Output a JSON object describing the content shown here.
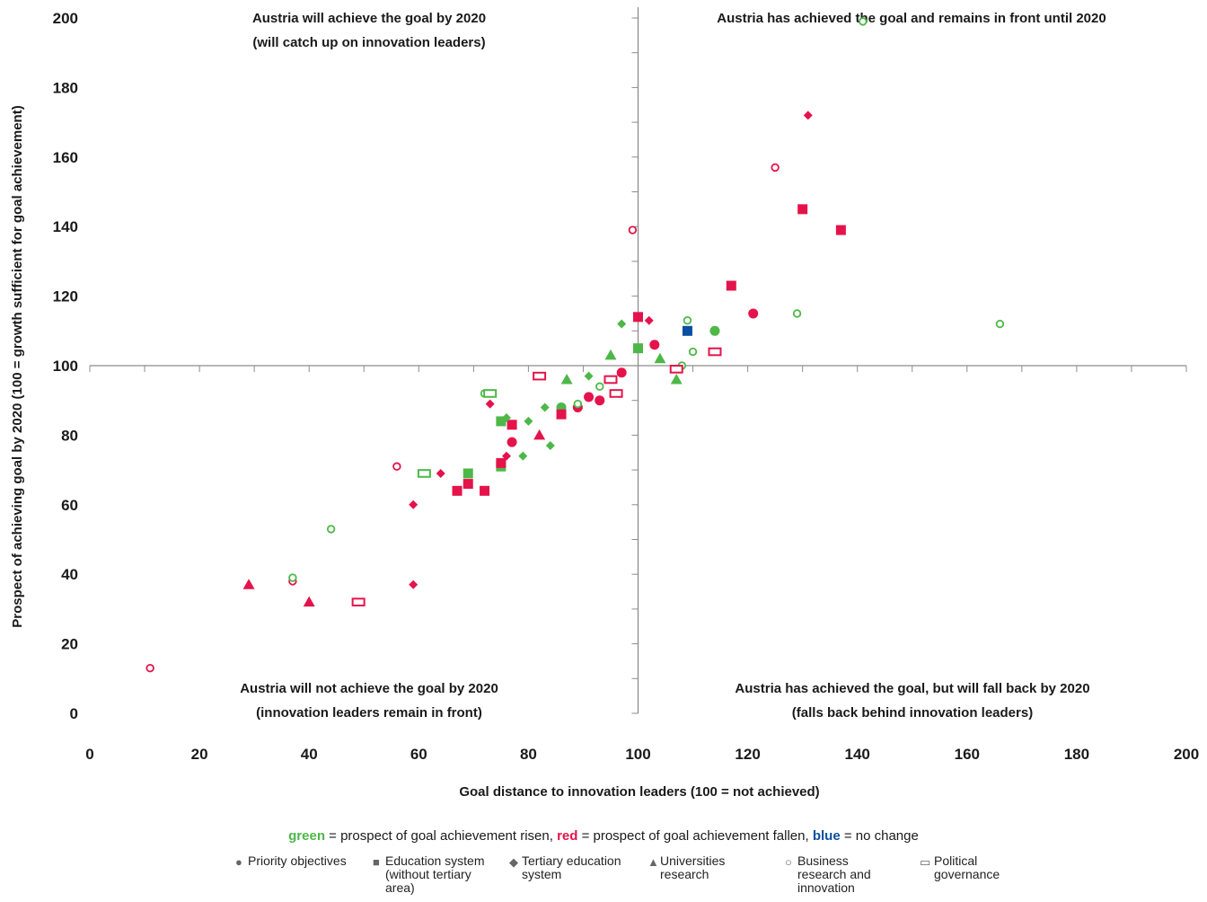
{
  "chart_data": {
    "type": "scatter",
    "xlabel": "Goal distance to innovation leaders (100 = not achieved)",
    "ylabel": "Prospect of achieving goal by 2020 (100 = growth sufficient for goal achievement)",
    "xlim": [
      0,
      200
    ],
    "ylim": [
      0,
      200
    ],
    "x_ticks": [
      "0",
      "20",
      "40",
      "60",
      "80",
      "100",
      "120",
      "140",
      "160",
      "180",
      "200"
    ],
    "y_ticks": [
      "0",
      "20",
      "40",
      "60",
      "80",
      "100",
      "120",
      "140",
      "160",
      "180",
      "200"
    ],
    "crosshair": {
      "x": 100,
      "y": 100
    },
    "colors": {
      "green": "#4db848",
      "red": "#e5134b",
      "blue": "#0a4fa0",
      "axis": "#8c8c8c"
    },
    "quadrant_labels": {
      "top_left": [
        "Austria will achieve the goal by 2020",
        "(will catch up on innovation leaders)"
      ],
      "top_right": [
        "Austria has achieved the goal and remains in front until 2020"
      ],
      "bottom_left": [
        "Austria will not achieve the goal by 2020",
        "(innovation leaders remain in front)"
      ],
      "bottom_right": [
        "Austria has achieved the goal, but will fall back by 2020",
        "(falls back behind innovation leaders)"
      ]
    },
    "points": [
      {
        "x": 86,
        "y": 88,
        "shape": "circle",
        "color": "green"
      },
      {
        "x": 91,
        "y": 91,
        "shape": "circle",
        "color": "red"
      },
      {
        "x": 93,
        "y": 90,
        "shape": "circle",
        "color": "red"
      },
      {
        "x": 89,
        "y": 88,
        "shape": "circle",
        "color": "red"
      },
      {
        "x": 97,
        "y": 98,
        "shape": "circle",
        "color": "red"
      },
      {
        "x": 103,
        "y": 106,
        "shape": "circle",
        "color": "red"
      },
      {
        "x": 114,
        "y": 110,
        "shape": "circle",
        "color": "green"
      },
      {
        "x": 121,
        "y": 115,
        "shape": "circle",
        "color": "red"
      },
      {
        "x": 77,
        "y": 78,
        "shape": "circle",
        "color": "red"
      },
      {
        "x": 69,
        "y": 69,
        "shape": "square",
        "color": "green"
      },
      {
        "x": 75,
        "y": 71,
        "shape": "square",
        "color": "green"
      },
      {
        "x": 75,
        "y": 84,
        "shape": "square",
        "color": "green"
      },
      {
        "x": 100,
        "y": 105,
        "shape": "square",
        "color": "green"
      },
      {
        "x": 67,
        "y": 64,
        "shape": "square",
        "color": "red"
      },
      {
        "x": 69,
        "y": 66,
        "shape": "square",
        "color": "red"
      },
      {
        "x": 72,
        "y": 64,
        "shape": "square",
        "color": "red"
      },
      {
        "x": 75,
        "y": 72,
        "shape": "square",
        "color": "red"
      },
      {
        "x": 77,
        "y": 83,
        "shape": "square",
        "color": "red"
      },
      {
        "x": 86,
        "y": 86,
        "shape": "square",
        "color": "red"
      },
      {
        "x": 100,
        "y": 114,
        "shape": "square",
        "color": "red"
      },
      {
        "x": 117,
        "y": 123,
        "shape": "square",
        "color": "red"
      },
      {
        "x": 130,
        "y": 145,
        "shape": "square",
        "color": "red"
      },
      {
        "x": 137,
        "y": 139,
        "shape": "square",
        "color": "red"
      },
      {
        "x": 109,
        "y": 110,
        "shape": "square",
        "color": "blue"
      },
      {
        "x": 59,
        "y": 37,
        "shape": "diamond",
        "color": "red"
      },
      {
        "x": 59,
        "y": 60,
        "shape": "diamond",
        "color": "red"
      },
      {
        "x": 64,
        "y": 69,
        "shape": "diamond",
        "color": "red"
      },
      {
        "x": 73,
        "y": 89,
        "shape": "diamond",
        "color": "red"
      },
      {
        "x": 76,
        "y": 74,
        "shape": "diamond",
        "color": "red"
      },
      {
        "x": 102,
        "y": 113,
        "shape": "diamond",
        "color": "red"
      },
      {
        "x": 131,
        "y": 172,
        "shape": "diamond",
        "color": "red"
      },
      {
        "x": 76,
        "y": 85,
        "shape": "diamond",
        "color": "green"
      },
      {
        "x": 79,
        "y": 74,
        "shape": "diamond",
        "color": "green"
      },
      {
        "x": 80,
        "y": 84,
        "shape": "diamond",
        "color": "green"
      },
      {
        "x": 83,
        "y": 88,
        "shape": "diamond",
        "color": "green"
      },
      {
        "x": 84,
        "y": 77,
        "shape": "diamond",
        "color": "green"
      },
      {
        "x": 91,
        "y": 97,
        "shape": "diamond",
        "color": "green"
      },
      {
        "x": 97,
        "y": 112,
        "shape": "diamond",
        "color": "green"
      },
      {
        "x": 29,
        "y": 37,
        "shape": "triangle",
        "color": "red"
      },
      {
        "x": 40,
        "y": 32,
        "shape": "triangle",
        "color": "red"
      },
      {
        "x": 82,
        "y": 80,
        "shape": "triangle",
        "color": "red"
      },
      {
        "x": 87,
        "y": 96,
        "shape": "triangle",
        "color": "green"
      },
      {
        "x": 95,
        "y": 103,
        "shape": "triangle",
        "color": "green"
      },
      {
        "x": 104,
        "y": 102,
        "shape": "triangle",
        "color": "green"
      },
      {
        "x": 107,
        "y": 96,
        "shape": "triangle",
        "color": "green"
      },
      {
        "x": 11,
        "y": 13,
        "shape": "ring",
        "color": "red"
      },
      {
        "x": 37,
        "y": 38,
        "shape": "ring",
        "color": "red"
      },
      {
        "x": 56,
        "y": 71,
        "shape": "ring",
        "color": "red"
      },
      {
        "x": 99,
        "y": 139,
        "shape": "ring",
        "color": "red"
      },
      {
        "x": 125,
        "y": 157,
        "shape": "ring",
        "color": "red"
      },
      {
        "x": 37,
        "y": 39,
        "shape": "ring",
        "color": "green"
      },
      {
        "x": 44,
        "y": 53,
        "shape": "ring",
        "color": "green"
      },
      {
        "x": 72,
        "y": 92,
        "shape": "ring",
        "color": "green"
      },
      {
        "x": 89,
        "y": 89,
        "shape": "ring",
        "color": "green"
      },
      {
        "x": 93,
        "y": 94,
        "shape": "ring",
        "color": "green"
      },
      {
        "x": 108,
        "y": 100,
        "shape": "ring",
        "color": "green"
      },
      {
        "x": 109,
        "y": 113,
        "shape": "ring",
        "color": "green"
      },
      {
        "x": 110,
        "y": 104,
        "shape": "ring",
        "color": "green"
      },
      {
        "x": 129,
        "y": 115,
        "shape": "ring",
        "color": "green"
      },
      {
        "x": 141,
        "y": 199,
        "shape": "ring",
        "color": "green"
      },
      {
        "x": 166,
        "y": 112,
        "shape": "ring",
        "color": "green"
      },
      {
        "x": 49,
        "y": 32,
        "shape": "hollow_square",
        "color": "red"
      },
      {
        "x": 82,
        "y": 97,
        "shape": "hollow_square",
        "color": "red"
      },
      {
        "x": 95,
        "y": 96,
        "shape": "hollow_square",
        "color": "red"
      },
      {
        "x": 96,
        "y": 92,
        "shape": "hollow_square",
        "color": "red"
      },
      {
        "x": 107,
        "y": 99,
        "shape": "hollow_square",
        "color": "red"
      },
      {
        "x": 114,
        "y": 104,
        "shape": "hollow_square",
        "color": "red"
      },
      {
        "x": 61,
        "y": 69,
        "shape": "hollow_square",
        "color": "green"
      },
      {
        "x": 73,
        "y": 92,
        "shape": "hollow_square",
        "color": "green"
      }
    ],
    "legend_colors": {
      "green_word": "green",
      "green_text": " = prospect of goal achievement risen, ",
      "red_word": "red",
      "red_text": " = prospect of goal achievement fallen, ",
      "blue_word": "blue",
      "blue_text": " = no change"
    },
    "legend_shapes": [
      {
        "symbol": "●",
        "label": "Priority objectives"
      },
      {
        "symbol": "■",
        "label": "Education system (without tertiary area)"
      },
      {
        "symbol": "◆",
        "label": "Tertiary education system"
      },
      {
        "symbol": "▲",
        "label": "Universities research"
      },
      {
        "symbol": "○",
        "label": "Business research and innovation"
      },
      {
        "symbol": "▭",
        "label": "Political governance"
      }
    ]
  }
}
